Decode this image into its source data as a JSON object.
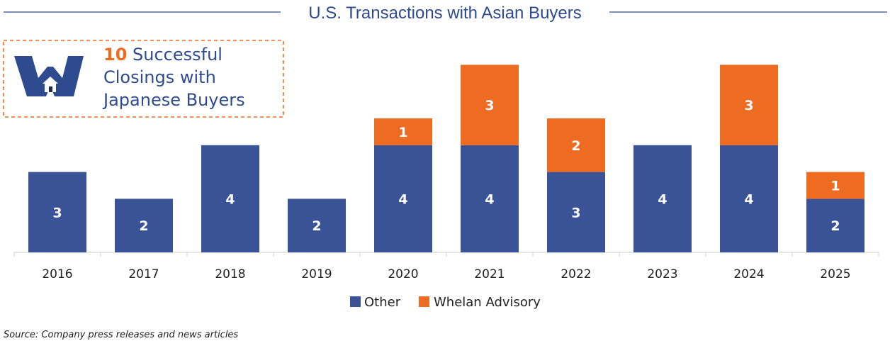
{
  "colors": {
    "title": "#2f4b8f",
    "other": "#3a5396",
    "whelan": "#ee6c21",
    "axis": "#cccccc"
  },
  "callout": {
    "number": "10",
    "line1_rest": " Successful",
    "line2": "Closings with",
    "line3": "Japanese Buyers",
    "logo_icon": "whelan-w-house-logo-icon"
  },
  "source_note": "Source: Company press releases and news articles",
  "chart_data": {
    "type": "bar",
    "stacked": true,
    "title": "U.S. Transactions with Asian Buyers",
    "xlabel": "",
    "ylabel": "",
    "ylim": [
      0,
      7
    ],
    "grid": false,
    "legend_position": "bottom-center",
    "categories": [
      "2016",
      "2017",
      "2018",
      "2019",
      "2020",
      "2021",
      "2022",
      "2023",
      "2024",
      "2025"
    ],
    "series": [
      {
        "name": "Other",
        "values": [
          3,
          2,
          4,
          2,
          4,
          4,
          3,
          4,
          4,
          2
        ]
      },
      {
        "name": "Whelan Advisory",
        "values": [
          0,
          0,
          0,
          0,
          1,
          3,
          2,
          0,
          3,
          1
        ]
      }
    ]
  }
}
